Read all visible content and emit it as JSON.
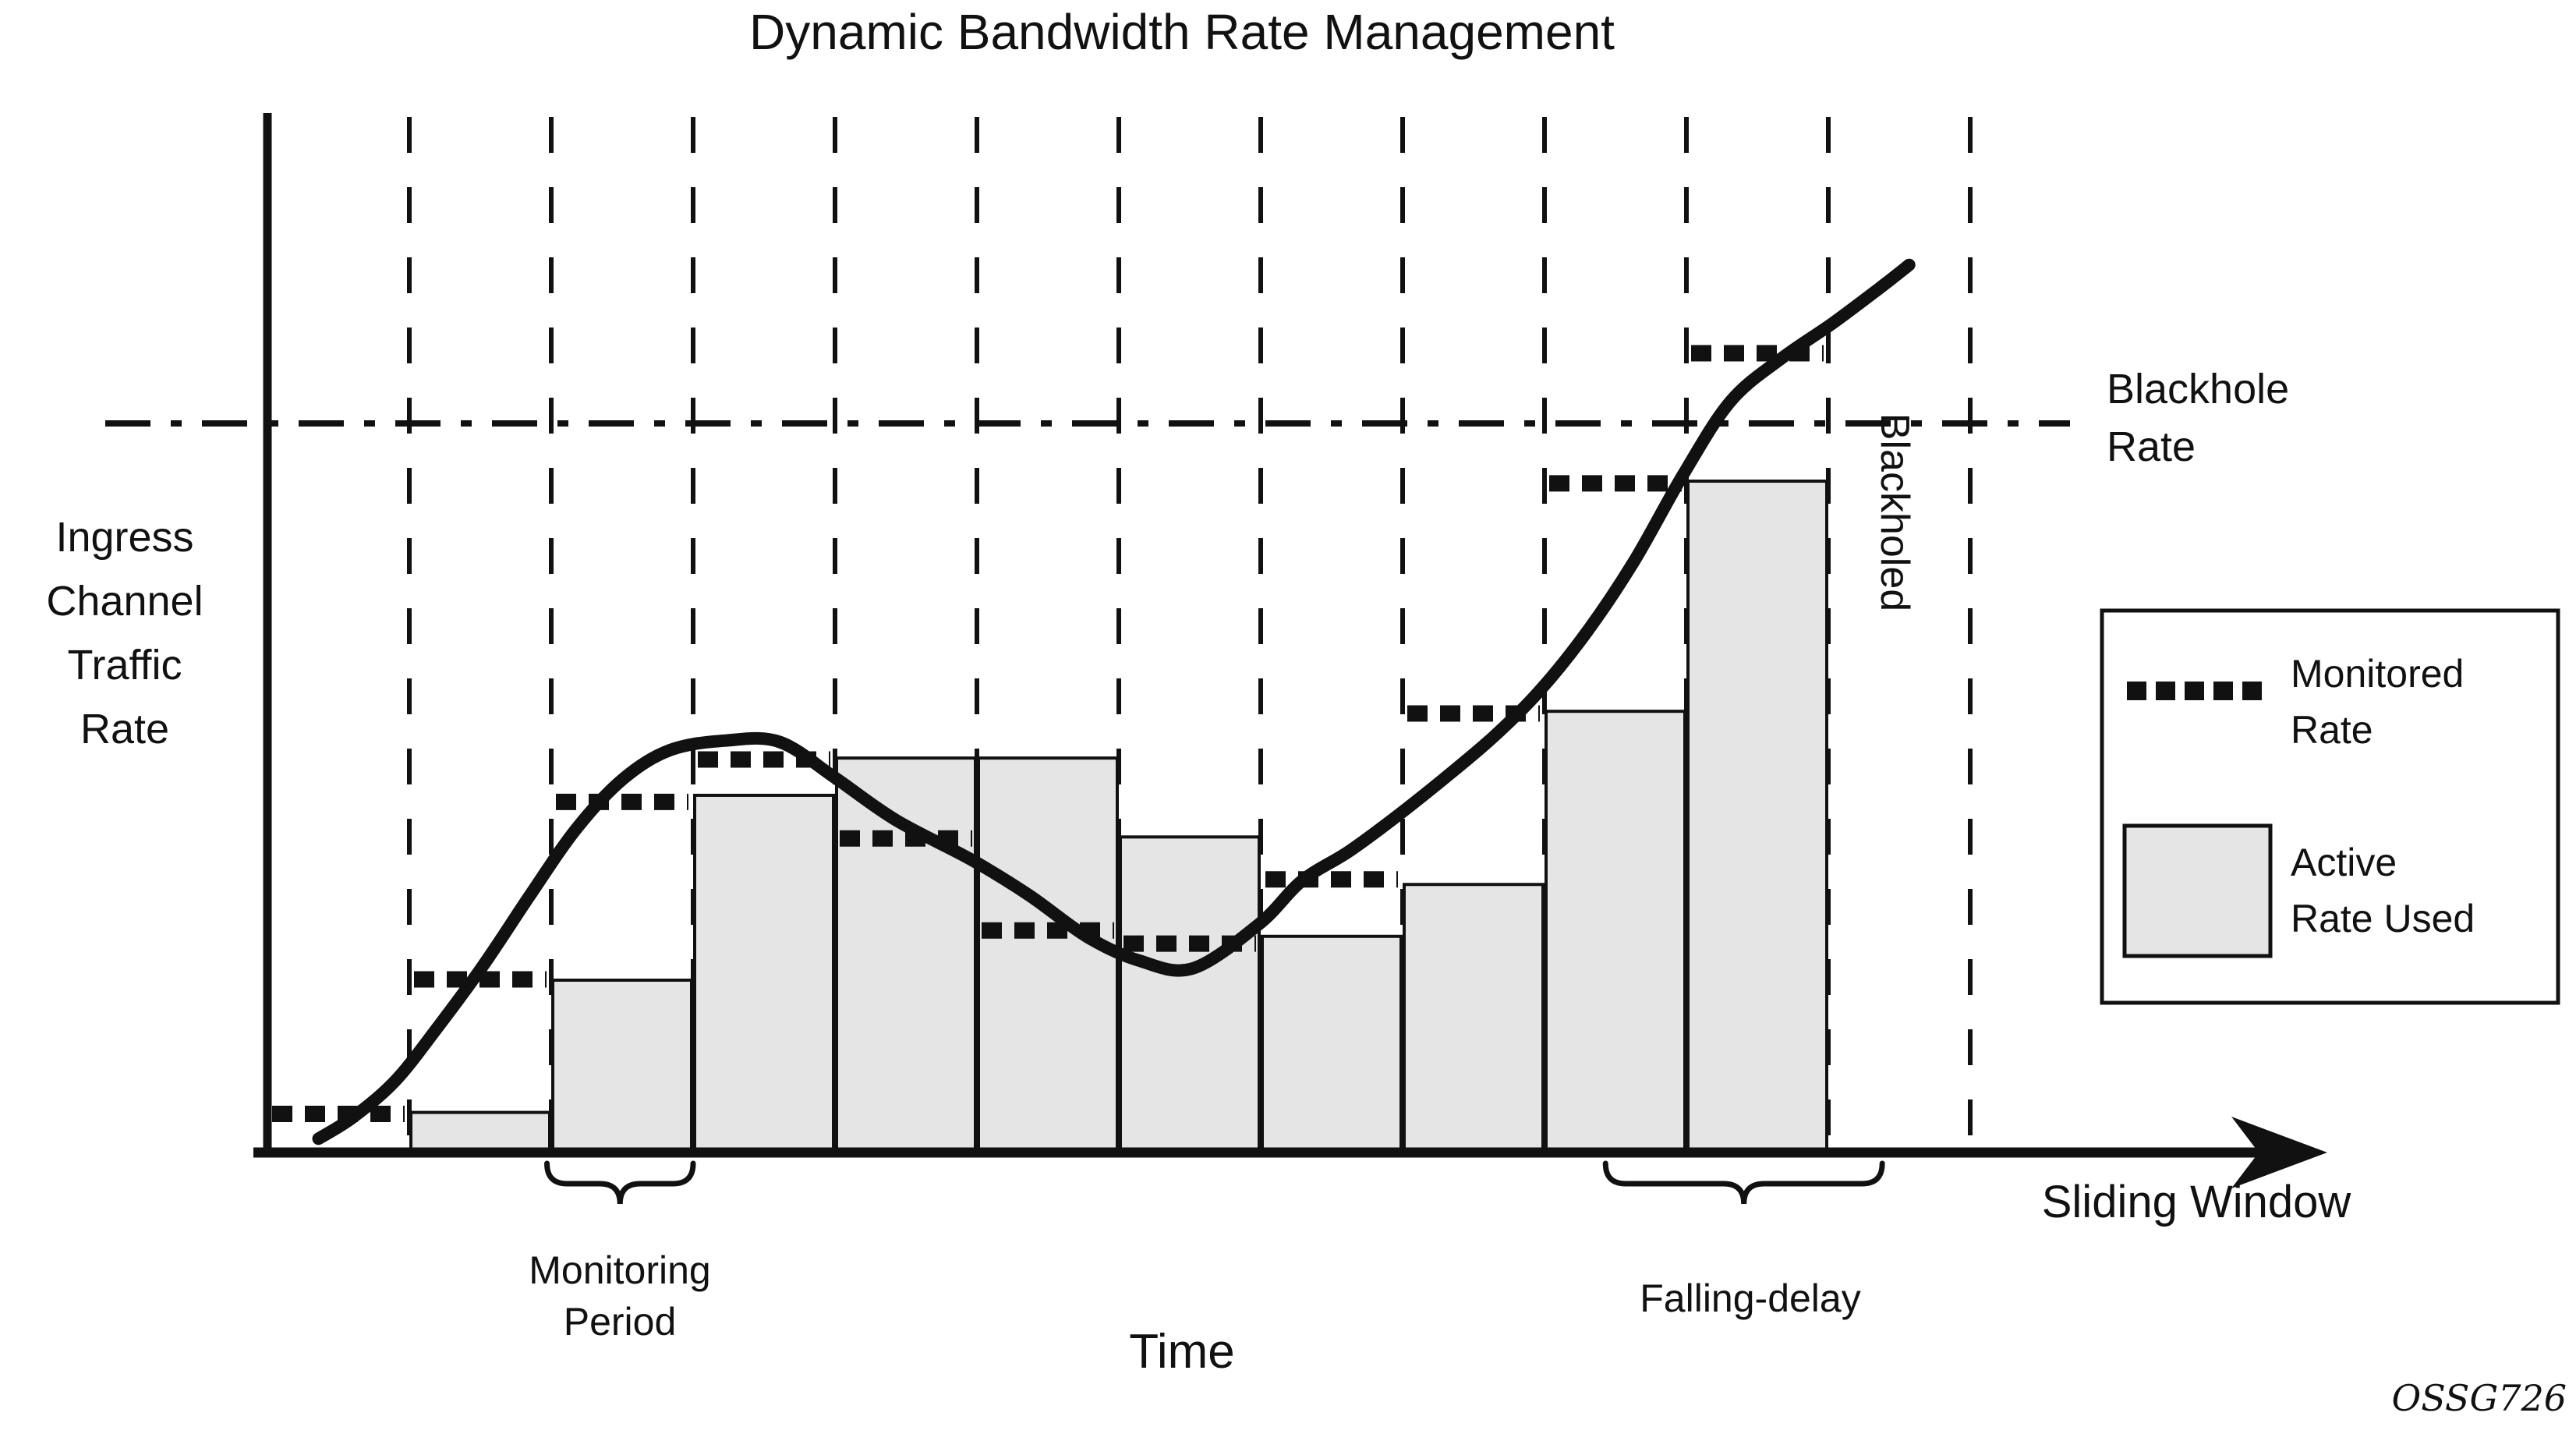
{
  "title": "Dynamic Bandwidth Rate Management",
  "watermark": "OSSG726",
  "colors": {
    "ink": "#111111",
    "bar_fill": "#e5e5e5",
    "background": "#ffffff"
  },
  "axis": {
    "y_label": "Ingress\nChannel\nTraffic\nRate",
    "x_label": "Time",
    "x_arrow_label": "Sliding Window"
  },
  "annotations": {
    "blackhole_rate": "Blackhole\nRate",
    "blackholed": "Blackholed",
    "monitoring_period": "Monitoring\nPeriod",
    "falling_delay": "Falling-delay"
  },
  "legend": {
    "monitored_label": "Monitored\nRate",
    "active_label": "Active\nRate Used"
  },
  "chart_data": {
    "type": "composite",
    "x_unit": "monitoring-period index (no numeric tick labels shown)",
    "y_unit": "relative ingress rate (no numeric tick labels shown; blackhole rate = 100)",
    "xlim": [
      0,
      14.3
    ],
    "ylim": [
      0,
      143
    ],
    "grid": "vertical dashed gridlines at every period boundary",
    "gridline_periods": [
      1,
      2,
      3,
      4,
      5,
      6,
      7,
      8,
      9,
      10,
      11,
      12
    ],
    "blackhole_level": 100,
    "series": [
      {
        "name": "Active Rate Used",
        "type": "bar",
        "bars": [
          {
            "from": 1,
            "to": 2,
            "value": 5.7
          },
          {
            "from": 2,
            "to": 3,
            "value": 23.8
          },
          {
            "from": 3,
            "to": 4,
            "value": 49.1
          },
          {
            "from": 4,
            "to": 5,
            "value": 54.2
          },
          {
            "from": 5,
            "to": 6,
            "value": 54.2
          },
          {
            "from": 6,
            "to": 7,
            "value": 43.4
          },
          {
            "from": 7,
            "to": 8,
            "value": 29.8
          },
          {
            "from": 8,
            "to": 9,
            "value": 36.9
          },
          {
            "from": 9,
            "to": 10,
            "value": 60.6
          },
          {
            "from": 10,
            "to": 11,
            "value": 92.1
          }
        ]
      },
      {
        "name": "Monitored Rate",
        "type": "dotted-step",
        "segments": [
          {
            "from": 0,
            "to": 1,
            "value": 5.5
          },
          {
            "from": 1,
            "to": 2,
            "value": 23.9
          },
          {
            "from": 2,
            "to": 3,
            "value": 48.2
          },
          {
            "from": 3,
            "to": 4,
            "value": 54.0
          },
          {
            "from": 4,
            "to": 5,
            "value": 43.2
          },
          {
            "from": 5,
            "to": 6,
            "value": 30.6
          },
          {
            "from": 6,
            "to": 7,
            "value": 28.8
          },
          {
            "from": 7,
            "to": 8,
            "value": 37.6
          },
          {
            "from": 8,
            "to": 9,
            "value": 60.3
          },
          {
            "from": 9,
            "to": 10,
            "value": 91.8
          },
          {
            "from": 10,
            "to": 11,
            "value": 109.6
          }
        ]
      },
      {
        "name": "Ingress Channel Traffic",
        "type": "line",
        "points": [
          [
            0.36,
            2.1
          ],
          [
            0.6,
            5.0
          ],
          [
            0.9,
            10.0
          ],
          [
            1.19,
            17.1
          ],
          [
            1.52,
            25.8
          ],
          [
            1.85,
            35.4
          ],
          [
            2.18,
            44.6
          ],
          [
            2.51,
            51.4
          ],
          [
            2.84,
            55.3
          ],
          [
            3.23,
            56.6
          ],
          [
            3.61,
            56.4
          ],
          [
            4.0,
            51.5
          ],
          [
            4.43,
            45.7
          ],
          [
            4.96,
            40.3
          ],
          [
            5.37,
            35.4
          ],
          [
            5.78,
            29.7
          ],
          [
            6.14,
            26.5
          ],
          [
            6.52,
            25.4
          ],
          [
            6.99,
            31.5
          ],
          [
            7.29,
            37.4
          ],
          [
            7.62,
            41.4
          ],
          [
            7.95,
            46.1
          ],
          [
            8.28,
            51.2
          ],
          [
            8.64,
            57.1
          ],
          [
            8.97,
            63.5
          ],
          [
            9.3,
            71.5
          ],
          [
            9.63,
            81.1
          ],
          [
            9.98,
            93.1
          ],
          [
            10.31,
            103.0
          ],
          [
            10.67,
            108.9
          ],
          [
            11.03,
            113.7
          ],
          [
            11.36,
            118.5
          ],
          [
            11.57,
            121.7
          ]
        ]
      }
    ],
    "braces": {
      "monitoring_period": {
        "from": 1.97,
        "to": 3.0
      },
      "falling_delay": {
        "from": 9.43,
        "to": 11.38
      }
    },
    "legend_position": "right"
  }
}
